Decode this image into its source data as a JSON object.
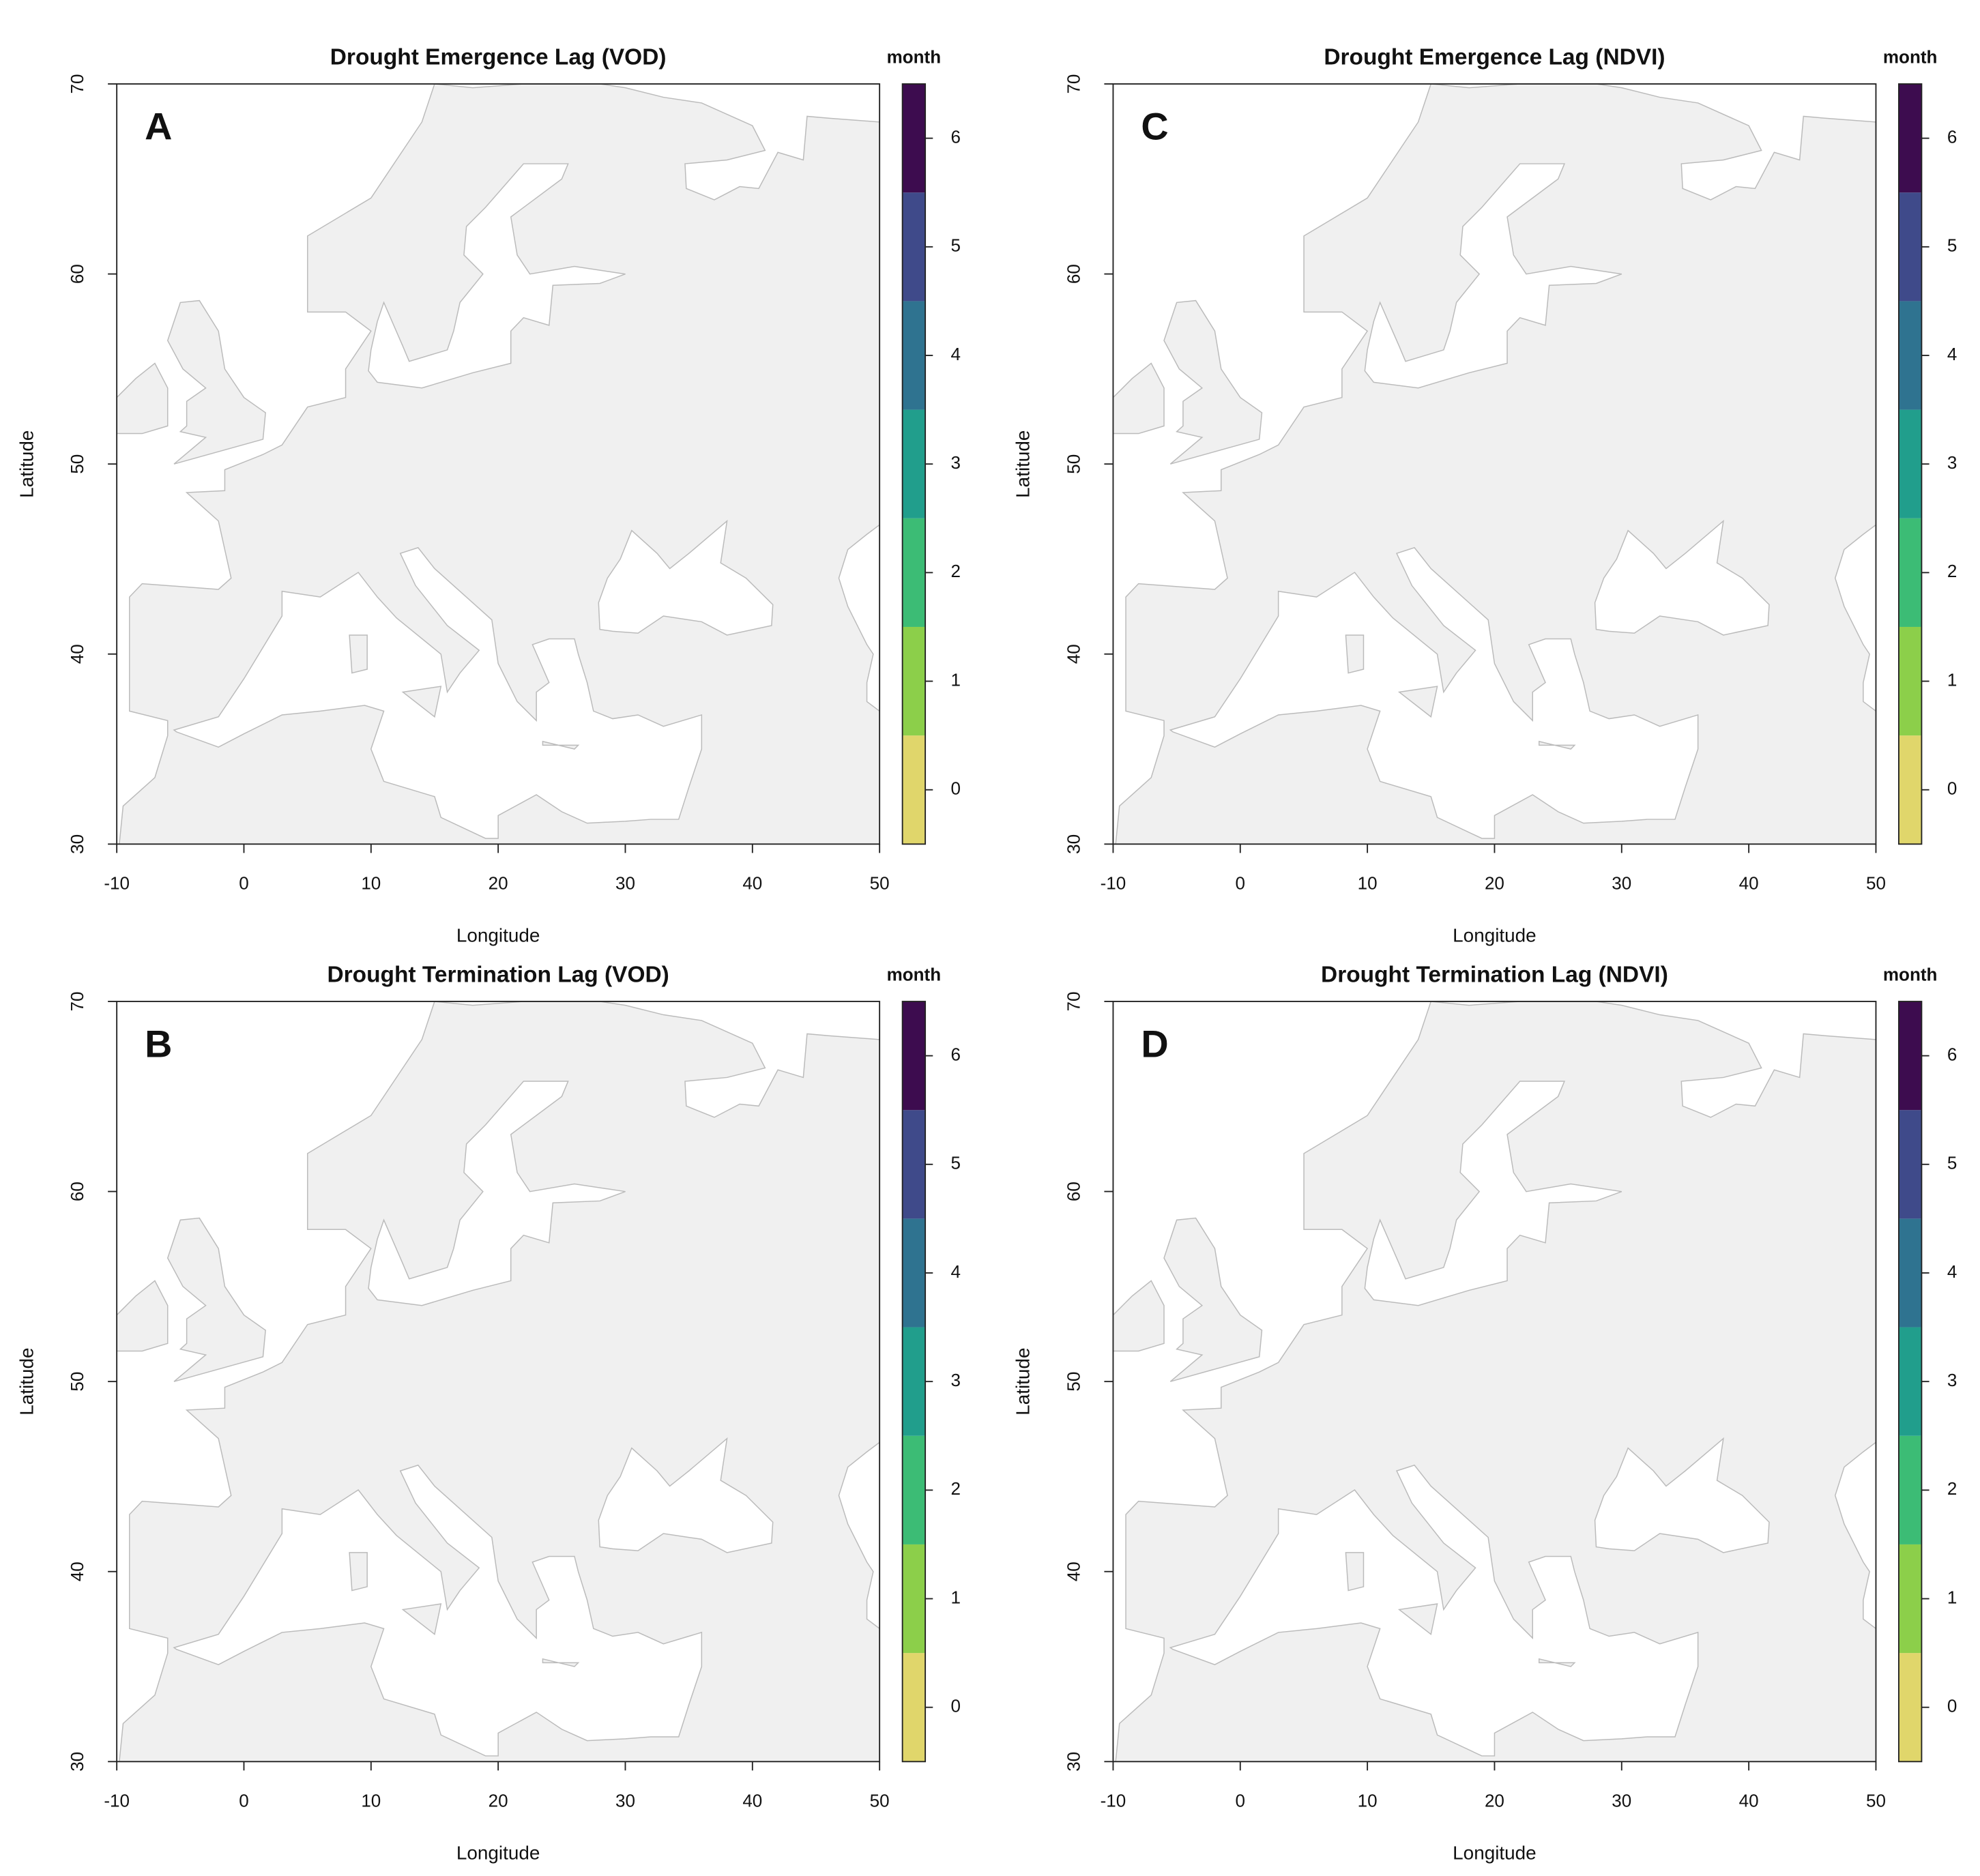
{
  "chart_data": [
    {
      "type": "raster_map",
      "title": "Drought Emergence Lag (VOD)",
      "panel_label": "A",
      "xlabel": "Longitude",
      "ylabel": "Latitude",
      "xlim": [
        -10,
        50
      ],
      "ylim": [
        30,
        70
      ],
      "xticks": [
        -10,
        0,
        10,
        20,
        30,
        40,
        50
      ],
      "yticks": [
        30,
        40,
        50,
        60,
        70
      ],
      "colorbar": {
        "label": "month",
        "lim": [
          -0.5,
          6.5
        ],
        "ticks": [
          0,
          1,
          2,
          3,
          4,
          5,
          6
        ],
        "colors": [
          "#e0d66b",
          "#8ccf4a",
          "#3cbc75",
          "#219e8c",
          "#2f7390",
          "#3f4a8a",
          "#3d0c4f"
        ]
      }
    },
    {
      "type": "raster_map",
      "title": "Drought Emergence Lag (NDVI)",
      "panel_label": "C",
      "xlabel": "Longitude",
      "ylabel": "Latitude",
      "xlim": [
        -10,
        50
      ],
      "ylim": [
        30,
        70
      ],
      "xticks": [
        -10,
        0,
        10,
        20,
        30,
        40,
        50
      ],
      "yticks": [
        30,
        40,
        50,
        60,
        70
      ],
      "colorbar": {
        "label": "month",
        "lim": [
          -0.5,
          6.5
        ],
        "ticks": [
          0,
          1,
          2,
          3,
          4,
          5,
          6
        ],
        "colors": [
          "#e0d66b",
          "#8ccf4a",
          "#3cbc75",
          "#219e8c",
          "#2f7390",
          "#3f4a8a",
          "#3d0c4f"
        ]
      }
    },
    {
      "type": "raster_map",
      "title": "Drought Termination Lag (VOD)",
      "panel_label": "B",
      "xlabel": "Longitude",
      "ylabel": "Latitude",
      "xlim": [
        -10,
        50
      ],
      "ylim": [
        30,
        70
      ],
      "xticks": [
        -10,
        0,
        10,
        20,
        30,
        40,
        50
      ],
      "yticks": [
        30,
        40,
        50,
        60,
        70
      ],
      "colorbar": {
        "label": "month",
        "lim": [
          -0.5,
          6.5
        ],
        "ticks": [
          0,
          1,
          2,
          3,
          4,
          5,
          6
        ],
        "colors": [
          "#e0d66b",
          "#8ccf4a",
          "#3cbc75",
          "#219e8c",
          "#2f7390",
          "#3f4a8a",
          "#3d0c4f"
        ]
      }
    },
    {
      "type": "raster_map",
      "title": "Drought Termination Lag (NDVI)",
      "panel_label": "D",
      "xlabel": "Longitude",
      "ylabel": "Latitude",
      "xlim": [
        -10,
        50
      ],
      "ylim": [
        30,
        70
      ],
      "xticks": [
        -10,
        0,
        10,
        20,
        30,
        40,
        50
      ],
      "yticks": [
        30,
        40,
        50,
        60,
        70
      ],
      "colorbar": {
        "label": "month",
        "lim": [
          -0.5,
          6.5
        ],
        "ticks": [
          0,
          1,
          2,
          3,
          4,
          5,
          6
        ],
        "colors": [
          "#e0d66b",
          "#8ccf4a",
          "#3cbc75",
          "#219e8c",
          "#2f7390",
          "#3f4a8a",
          "#3d0c4f"
        ]
      }
    }
  ]
}
